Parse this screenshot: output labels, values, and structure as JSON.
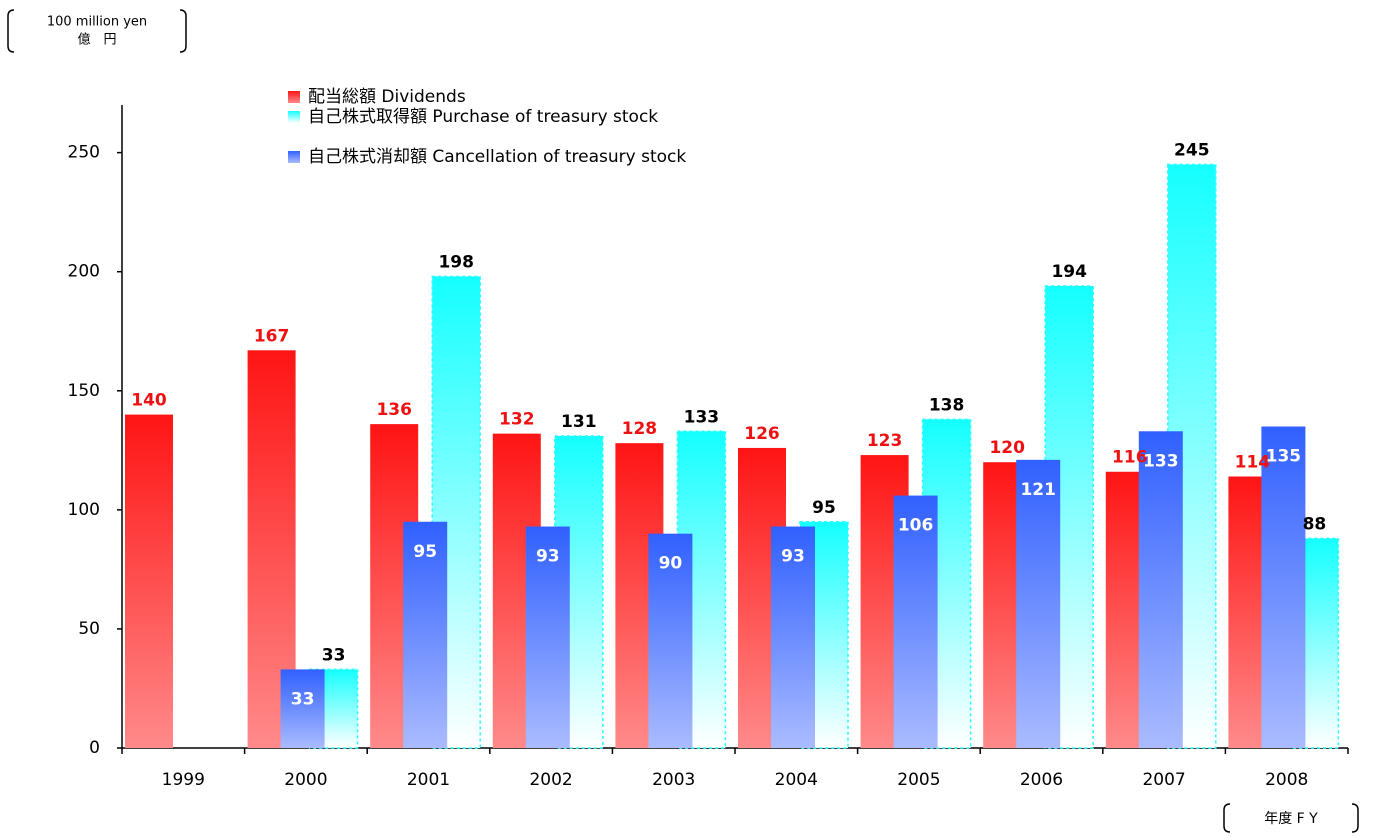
{
  "chart_data": {
    "type": "bar",
    "unit_label": [
      "100 million yen",
      "億　円"
    ],
    "x_label": "年度 F Y",
    "categories": [
      "1999",
      "2000",
      "2001",
      "2002",
      "2003",
      "2004",
      "2005",
      "2006",
      "2007",
      "2008"
    ],
    "series": [
      {
        "name": "配当総額 Dividends",
        "color": "#ff2020",
        "values": [
          140,
          167,
          136,
          132,
          128,
          126,
          123,
          120,
          116,
          114
        ]
      },
      {
        "name": "自己株式取得額 Purchase of treasury stock",
        "color": "#22ffff",
        "values": [
          null,
          33,
          198,
          131,
          133,
          95,
          138,
          194,
          245,
          88
        ]
      },
      {
        "name": "自己株式消却額 Cancellation of treasury stock",
        "color": "#3a66ff",
        "values": [
          null,
          33,
          95,
          93,
          90,
          93,
          106,
          121,
          133,
          135
        ]
      }
    ],
    "ylim": [
      0,
      270
    ],
    "yticks": [
      0,
      50,
      100,
      150,
      200,
      250
    ]
  }
}
